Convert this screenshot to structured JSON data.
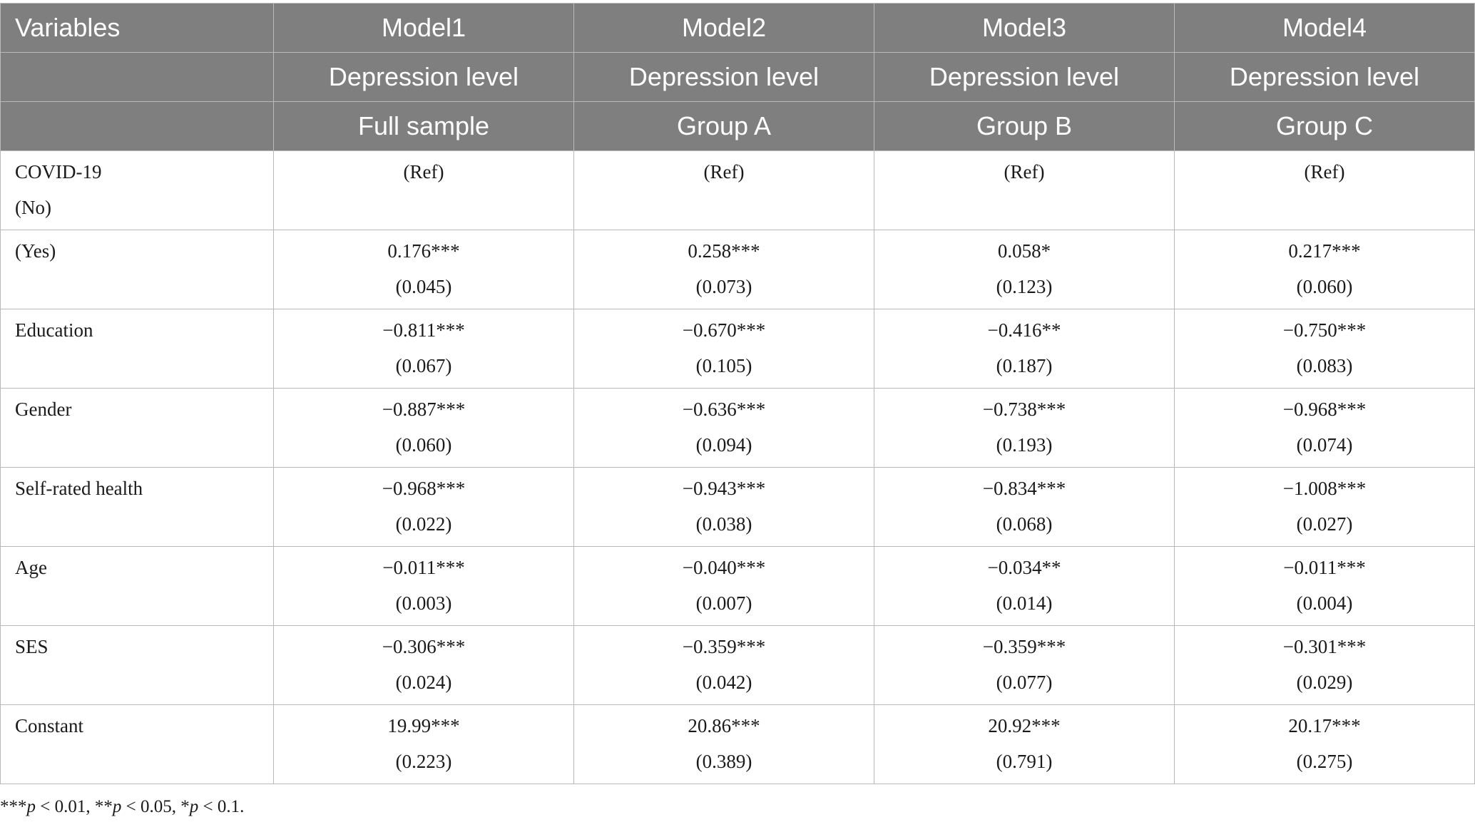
{
  "header": {
    "row1": [
      "Variables",
      "Model1",
      "Model2",
      "Model3",
      "Model4"
    ],
    "row2": [
      "",
      "Depression level",
      "Depression level",
      "Depression level",
      "Depression level"
    ],
    "row3": [
      "",
      "Full sample",
      "Group A",
      "Group B",
      "Group C"
    ]
  },
  "rows": [
    {
      "label": [
        "COVID-19",
        "(No)"
      ],
      "cells": [
        [
          "(Ref)",
          ""
        ],
        [
          "(Ref)",
          ""
        ],
        [
          "(Ref)",
          ""
        ],
        [
          "(Ref)",
          ""
        ]
      ]
    },
    {
      "label": [
        "(Yes)",
        ""
      ],
      "cells": [
        [
          "0.176***",
          "(0.045)"
        ],
        [
          "0.258***",
          "(0.073)"
        ],
        [
          "0.058*",
          "(0.123)"
        ],
        [
          "0.217***",
          "(0.060)"
        ]
      ]
    },
    {
      "label": [
        "Education",
        ""
      ],
      "cells": [
        [
          "−0.811***",
          "(0.067)"
        ],
        [
          "−0.670***",
          "(0.105)"
        ],
        [
          "−0.416**",
          "(0.187)"
        ],
        [
          "−0.750***",
          "(0.083)"
        ]
      ]
    },
    {
      "label": [
        "Gender",
        ""
      ],
      "cells": [
        [
          "−0.887***",
          "(0.060)"
        ],
        [
          "−0.636***",
          "(0.094)"
        ],
        [
          "−0.738***",
          "(0.193)"
        ],
        [
          "−0.968***",
          "(0.074)"
        ]
      ]
    },
    {
      "label": [
        "Self-rated health",
        ""
      ],
      "cells": [
        [
          "−0.968***",
          "(0.022)"
        ],
        [
          "−0.943***",
          "(0.038)"
        ],
        [
          "−0.834***",
          "(0.068)"
        ],
        [
          "−1.008***",
          "(0.027)"
        ]
      ]
    },
    {
      "label": [
        "Age",
        ""
      ],
      "cells": [
        [
          "−0.011***",
          "(0.003)"
        ],
        [
          "−0.040***",
          "(0.007)"
        ],
        [
          "−0.034**",
          "(0.014)"
        ],
        [
          "−0.011***",
          "(0.004)"
        ]
      ]
    },
    {
      "label": [
        "SES",
        ""
      ],
      "cells": [
        [
          "−0.306***",
          "(0.024)"
        ],
        [
          "−0.359***",
          "(0.042)"
        ],
        [
          "−0.359***",
          "(0.077)"
        ],
        [
          "−0.301***",
          "(0.029)"
        ]
      ]
    },
    {
      "label": [
        "Constant",
        ""
      ],
      "cells": [
        [
          "19.99***",
          "(0.223)"
        ],
        [
          "20.86***",
          "(0.389)"
        ],
        [
          "20.92***",
          "(0.791)"
        ],
        [
          "20.17***",
          "(0.275)"
        ]
      ]
    }
  ],
  "note": {
    "s1": "***",
    "p1": "p",
    "t1": " < 0.01, ",
    "s2": "**",
    "p2": "p",
    "t2": " < 0.05, ",
    "s3": "*",
    "p3": "p",
    "t3": " < 0.1."
  }
}
